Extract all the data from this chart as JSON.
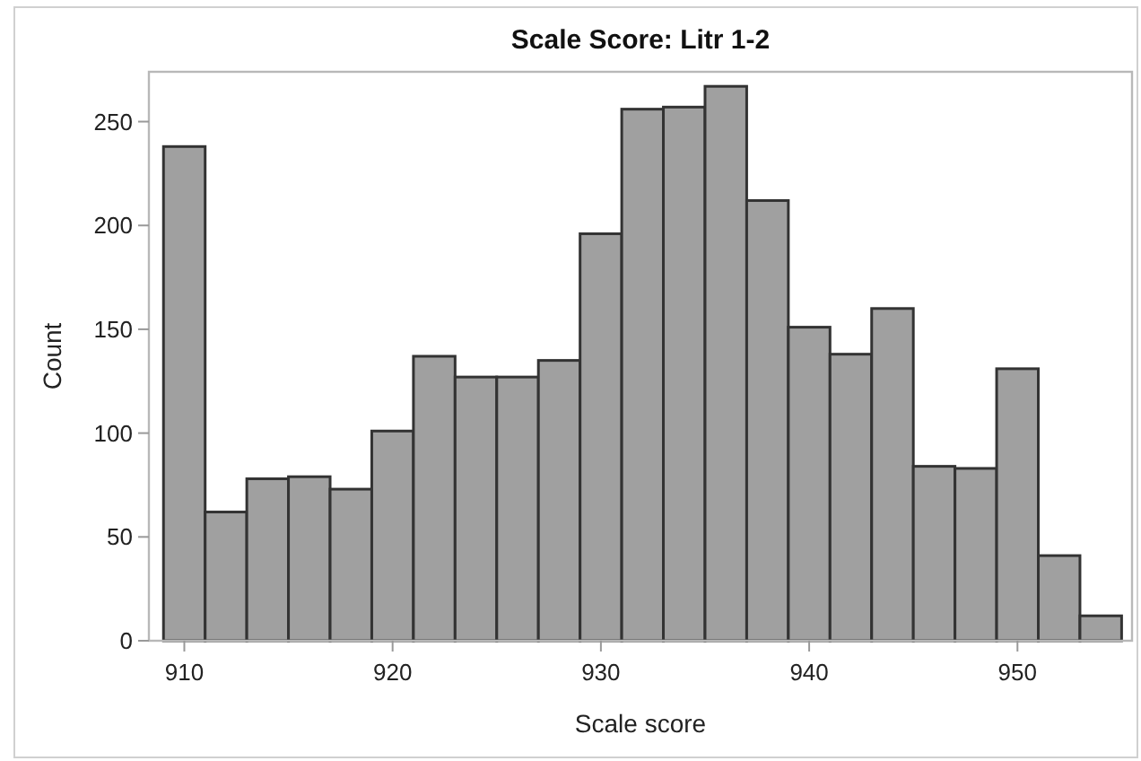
{
  "chart_data": {
    "type": "histogram",
    "title": "Scale Score: Litr 1-2",
    "xlabel": "Scale score",
    "ylabel": "Count",
    "bins": [
      909,
      911,
      913,
      915,
      917,
      919,
      921,
      923,
      925,
      927,
      929,
      931,
      933,
      935,
      937,
      939,
      941,
      943,
      945,
      947,
      949,
      951,
      953,
      955
    ],
    "values": [
      238,
      62,
      78,
      79,
      73,
      101,
      137,
      127,
      127,
      135,
      196,
      256,
      257,
      267,
      212,
      151,
      138,
      160,
      84,
      83,
      131,
      41,
      12
    ],
    "color": "#a0a0a0",
    "xlim": [
      908.3,
      955.5
    ],
    "xticks": [
      910,
      920,
      930,
      940,
      950
    ],
    "ylim": [
      0,
      274
    ],
    "yticks": [
      0,
      50,
      100,
      150,
      200,
      250
    ],
    "grid": false
  }
}
